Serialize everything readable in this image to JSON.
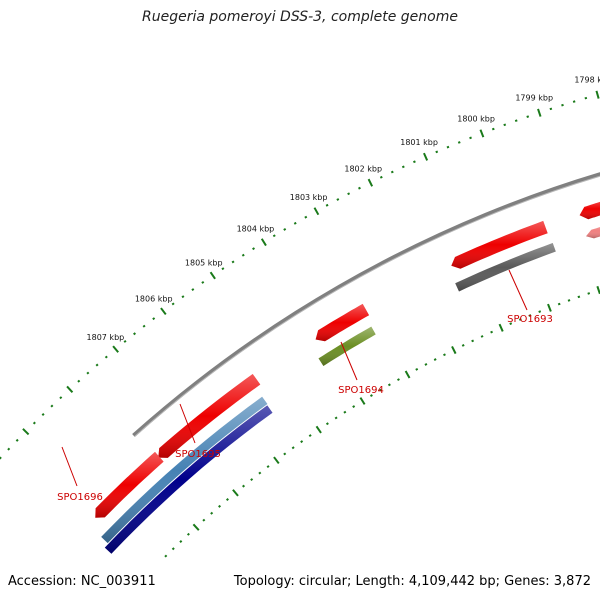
{
  "title": "Ruegeria pomeroyi DSS-3, complete genome",
  "footer": {
    "accession": "Accession: NC_003911",
    "summary": "Topology: circular; Length: 4,109,442 bp; Genes: 3,872"
  },
  "colors": {
    "backbone": "#808080",
    "ticks": "#1a7a1a",
    "cds_forward": "#ee0000",
    "cds_forward_faded": "#f08080",
    "label": "#cc0000"
  },
  "axis": {
    "labels": [
      "1798 kbp",
      "1799 kbp",
      "1800 kbp",
      "1801 kbp",
      "1802 kbp",
      "1803 kbp",
      "1804 kbp",
      "1805 kbp",
      "1806 kbp",
      "1807 kbp"
    ]
  },
  "genes": [
    {
      "id": "SPO1693",
      "label": "SPO1693",
      "cog_color": "#5a5a5a"
    },
    {
      "id": "SPO1694",
      "label": "SPO1694",
      "cog_color": "#6b8e23"
    },
    {
      "id": "SPO1695",
      "label": "SPO1695",
      "cog_color": "#4682b4"
    },
    {
      "id": "SPO1696",
      "label": "SPO1696",
      "cog_color": "#00008b"
    }
  ]
}
